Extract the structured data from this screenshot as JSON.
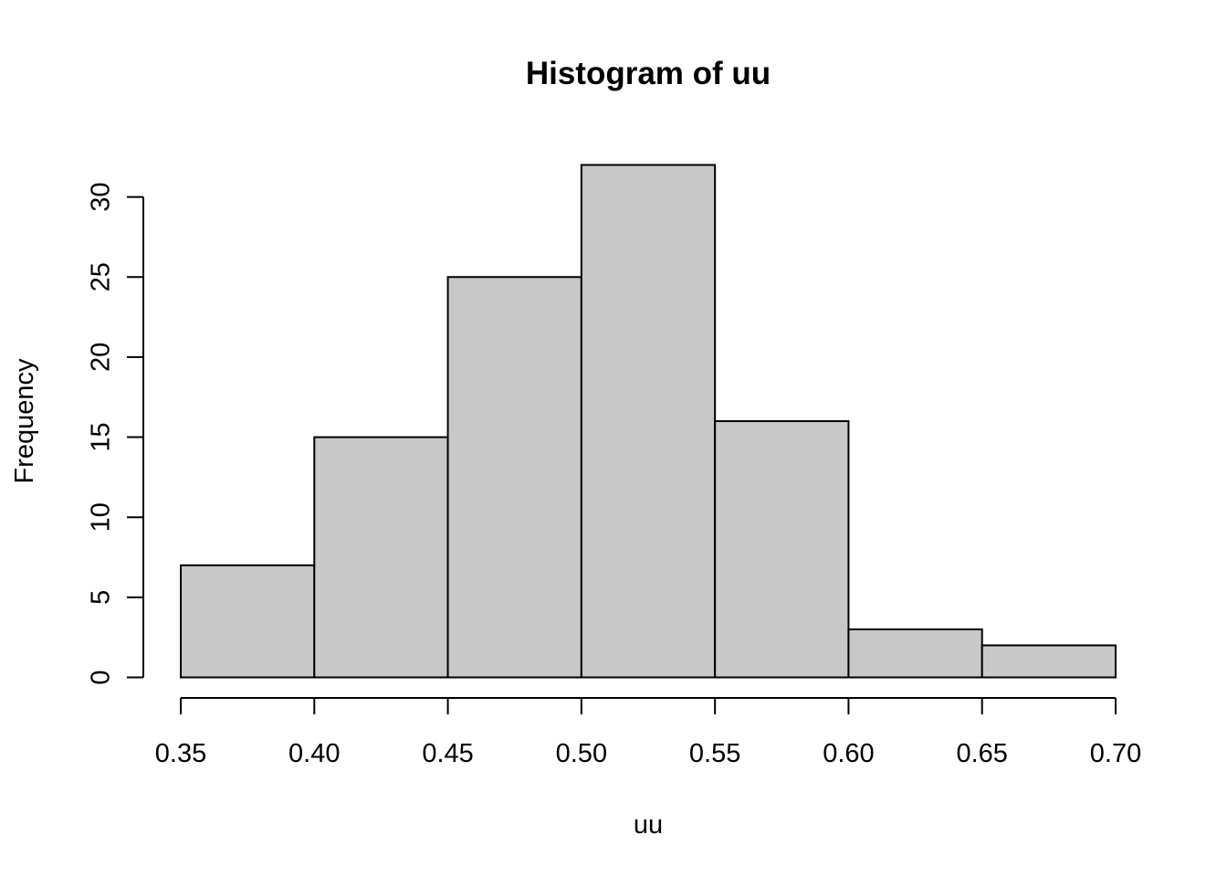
{
  "chart_data": {
    "type": "bar",
    "subtype": "histogram",
    "title": "Histogram of uu",
    "xlabel": "uu",
    "ylabel": "Frequency",
    "bins": [
      {
        "start": 0.35,
        "end": 0.4,
        "count": 7
      },
      {
        "start": 0.4,
        "end": 0.45,
        "count": 15
      },
      {
        "start": 0.45,
        "end": 0.5,
        "count": 25
      },
      {
        "start": 0.5,
        "end": 0.55,
        "count": 32
      },
      {
        "start": 0.55,
        "end": 0.6,
        "count": 16
      },
      {
        "start": 0.6,
        "end": 0.65,
        "count": 3
      },
      {
        "start": 0.65,
        "end": 0.7,
        "count": 2
      }
    ],
    "xticks": [
      "0.35",
      "0.40",
      "0.45",
      "0.50",
      "0.55",
      "0.60",
      "0.65",
      "0.70"
    ],
    "yticks": [
      "0",
      "5",
      "10",
      "15",
      "20",
      "25",
      "30"
    ],
    "xlim": [
      0.35,
      0.7
    ],
    "ylim": [
      0,
      32
    ],
    "bar_color": "#c8c8c8",
    "grid": false,
    "legend": "none"
  }
}
